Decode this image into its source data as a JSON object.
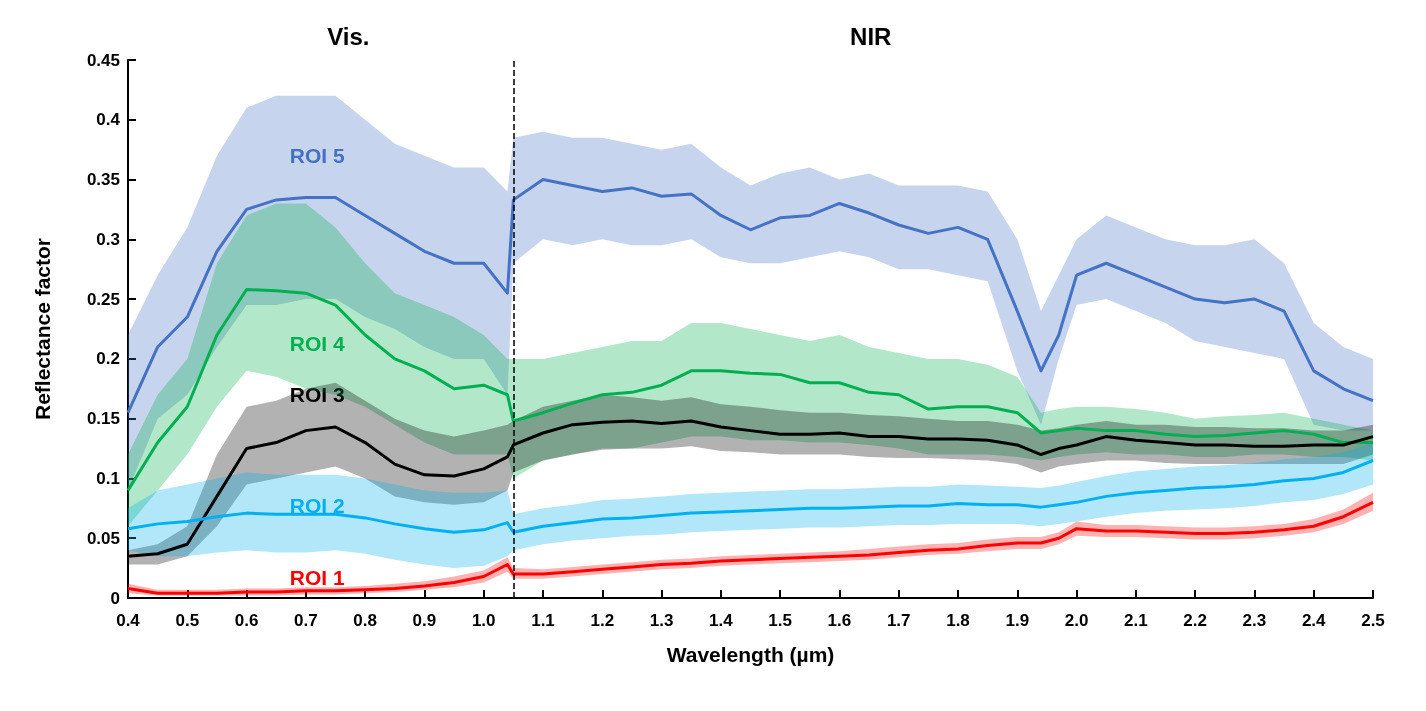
{
  "chart_data": {
    "type": "line",
    "xlabel": "Wavelength (µm)",
    "ylabel": "Reflectance factor",
    "annotations": [
      "Vis.",
      "NIR"
    ],
    "x": [
      0.4,
      0.45,
      0.5,
      0.55,
      0.6,
      0.65,
      0.7,
      0.75,
      0.8,
      0.85,
      0.9,
      0.95,
      1.0,
      1.04,
      1.05,
      1.1,
      1.15,
      1.2,
      1.25,
      1.3,
      1.35,
      1.4,
      1.45,
      1.5,
      1.55,
      1.6,
      1.65,
      1.7,
      1.75,
      1.8,
      1.85,
      1.9,
      1.94,
      1.97,
      2.0,
      2.05,
      2.1,
      2.15,
      2.2,
      2.25,
      2.3,
      2.35,
      2.4,
      2.45,
      2.5
    ],
    "series": [
      {
        "name": "ROI 5",
        "color": "#4472c4",
        "values": [
          0.155,
          0.21,
          0.235,
          0.29,
          0.325,
          0.333,
          0.335,
          0.335,
          0.32,
          0.305,
          0.29,
          0.28,
          0.28,
          0.255,
          0.333,
          0.35,
          0.345,
          0.34,
          0.343,
          0.336,
          0.338,
          0.32,
          0.308,
          0.318,
          0.32,
          0.33,
          0.322,
          0.312,
          0.305,
          0.31,
          0.3,
          0.24,
          0.19,
          0.22,
          0.27,
          0.28,
          0.27,
          0.26,
          0.25,
          0.247,
          0.25,
          0.24,
          0.19,
          0.175,
          0.165
        ],
        "upper": [
          0.22,
          0.27,
          0.31,
          0.37,
          0.41,
          0.42,
          0.42,
          0.42,
          0.4,
          0.38,
          0.37,
          0.36,
          0.36,
          0.34,
          0.385,
          0.39,
          0.385,
          0.385,
          0.38,
          0.375,
          0.38,
          0.36,
          0.345,
          0.355,
          0.36,
          0.35,
          0.355,
          0.345,
          0.345,
          0.345,
          0.34,
          0.3,
          0.24,
          0.27,
          0.3,
          0.32,
          0.31,
          0.3,
          0.295,
          0.295,
          0.3,
          0.28,
          0.23,
          0.21,
          0.2
        ],
        "lower": [
          0.09,
          0.15,
          0.17,
          0.21,
          0.245,
          0.245,
          0.25,
          0.25,
          0.235,
          0.225,
          0.21,
          0.2,
          0.2,
          0.17,
          0.28,
          0.3,
          0.295,
          0.3,
          0.295,
          0.295,
          0.3,
          0.285,
          0.28,
          0.28,
          0.285,
          0.29,
          0.285,
          0.275,
          0.275,
          0.27,
          0.265,
          0.19,
          0.145,
          0.2,
          0.245,
          0.25,
          0.24,
          0.23,
          0.215,
          0.21,
          0.205,
          0.2,
          0.145,
          0.14,
          0.14
        ]
      },
      {
        "name": "ROI 4",
        "color": "#00b050",
        "values": [
          0.09,
          0.13,
          0.16,
          0.22,
          0.258,
          0.257,
          0.255,
          0.245,
          0.22,
          0.2,
          0.19,
          0.175,
          0.178,
          0.17,
          0.148,
          0.155,
          0.163,
          0.17,
          0.172,
          0.178,
          0.19,
          0.19,
          0.188,
          0.187,
          0.18,
          0.18,
          0.172,
          0.17,
          0.158,
          0.16,
          0.16,
          0.155,
          0.138,
          0.14,
          0.142,
          0.14,
          0.14,
          0.137,
          0.135,
          0.136,
          0.138,
          0.14,
          0.137,
          0.13,
          0.13
        ],
        "upper": [
          0.12,
          0.17,
          0.2,
          0.28,
          0.32,
          0.33,
          0.33,
          0.31,
          0.28,
          0.255,
          0.245,
          0.235,
          0.22,
          0.2,
          0.2,
          0.2,
          0.205,
          0.21,
          0.215,
          0.215,
          0.23,
          0.23,
          0.225,
          0.22,
          0.215,
          0.22,
          0.21,
          0.205,
          0.2,
          0.2,
          0.195,
          0.185,
          0.155,
          0.158,
          0.16,
          0.16,
          0.158,
          0.155,
          0.15,
          0.152,
          0.153,
          0.155,
          0.15,
          0.145,
          0.14
        ],
        "lower": [
          0.06,
          0.09,
          0.12,
          0.16,
          0.19,
          0.185,
          0.175,
          0.17,
          0.16,
          0.145,
          0.13,
          0.12,
          0.12,
          0.12,
          0.1,
          0.115,
          0.12,
          0.125,
          0.125,
          0.13,
          0.135,
          0.135,
          0.132,
          0.132,
          0.13,
          0.13,
          0.128,
          0.125,
          0.12,
          0.12,
          0.12,
          0.118,
          0.115,
          0.118,
          0.12,
          0.122,
          0.12,
          0.12,
          0.118,
          0.118,
          0.12,
          0.12,
          0.118,
          0.118,
          0.115
        ]
      },
      {
        "name": "ROI 3",
        "color": "#000000",
        "values": [
          0.035,
          0.037,
          0.045,
          0.085,
          0.125,
          0.13,
          0.14,
          0.143,
          0.13,
          0.112,
          0.103,
          0.102,
          0.108,
          0.118,
          0.128,
          0.138,
          0.145,
          0.147,
          0.148,
          0.146,
          0.148,
          0.143,
          0.14,
          0.137,
          0.137,
          0.138,
          0.135,
          0.135,
          0.133,
          0.133,
          0.132,
          0.128,
          0.12,
          0.125,
          0.128,
          0.135,
          0.132,
          0.13,
          0.128,
          0.128,
          0.127,
          0.127,
          0.128,
          0.128,
          0.135
        ],
        "upper": [
          0.04,
          0.045,
          0.06,
          0.12,
          0.16,
          0.165,
          0.175,
          0.18,
          0.165,
          0.15,
          0.14,
          0.135,
          0.14,
          0.145,
          0.148,
          0.16,
          0.165,
          0.17,
          0.168,
          0.165,
          0.168,
          0.162,
          0.16,
          0.157,
          0.155,
          0.155,
          0.153,
          0.152,
          0.15,
          0.148,
          0.148,
          0.145,
          0.14,
          0.142,
          0.145,
          0.148,
          0.145,
          0.145,
          0.143,
          0.143,
          0.142,
          0.142,
          0.14,
          0.14,
          0.145
        ],
        "lower": [
          0.028,
          0.028,
          0.035,
          0.06,
          0.095,
          0.1,
          0.105,
          0.11,
          0.1,
          0.085,
          0.08,
          0.078,
          0.08,
          0.09,
          0.105,
          0.115,
          0.12,
          0.124,
          0.125,
          0.125,
          0.127,
          0.123,
          0.122,
          0.12,
          0.12,
          0.12,
          0.118,
          0.117,
          0.117,
          0.116,
          0.115,
          0.112,
          0.105,
          0.11,
          0.112,
          0.115,
          0.115,
          0.113,
          0.112,
          0.112,
          0.112,
          0.112,
          0.112,
          0.112,
          0.12
        ]
      },
      {
        "name": "ROI 2",
        "color": "#00b0f0",
        "values": [
          0.058,
          0.062,
          0.064,
          0.068,
          0.071,
          0.07,
          0.07,
          0.07,
          0.067,
          0.062,
          0.058,
          0.055,
          0.057,
          0.063,
          0.055,
          0.06,
          0.063,
          0.066,
          0.067,
          0.069,
          0.071,
          0.072,
          0.073,
          0.074,
          0.075,
          0.075,
          0.076,
          0.077,
          0.077,
          0.079,
          0.078,
          0.078,
          0.076,
          0.078,
          0.08,
          0.085,
          0.088,
          0.09,
          0.092,
          0.093,
          0.095,
          0.098,
          0.1,
          0.105,
          0.115
        ],
        "upper": [
          0.075,
          0.09,
          0.095,
          0.1,
          0.105,
          0.103,
          0.103,
          0.103,
          0.1,
          0.095,
          0.09,
          0.088,
          0.088,
          0.09,
          0.07,
          0.075,
          0.078,
          0.082,
          0.083,
          0.085,
          0.087,
          0.088,
          0.089,
          0.09,
          0.091,
          0.091,
          0.092,
          0.093,
          0.093,
          0.095,
          0.094,
          0.093,
          0.092,
          0.094,
          0.097,
          0.102,
          0.106,
          0.108,
          0.11,
          0.111,
          0.113,
          0.116,
          0.118,
          0.122,
          0.13
        ],
        "lower": [
          0.04,
          0.035,
          0.035,
          0.038,
          0.04,
          0.038,
          0.038,
          0.04,
          0.037,
          0.032,
          0.028,
          0.025,
          0.027,
          0.035,
          0.04,
          0.045,
          0.048,
          0.05,
          0.052,
          0.053,
          0.055,
          0.056,
          0.057,
          0.058,
          0.059,
          0.059,
          0.06,
          0.061,
          0.061,
          0.062,
          0.062,
          0.062,
          0.06,
          0.062,
          0.064,
          0.068,
          0.071,
          0.073,
          0.074,
          0.075,
          0.077,
          0.08,
          0.082,
          0.087,
          0.095
        ]
      },
      {
        "name": "ROI 1",
        "color": "#ff0000",
        "values": [
          0.008,
          0.004,
          0.004,
          0.004,
          0.005,
          0.005,
          0.006,
          0.006,
          0.007,
          0.008,
          0.01,
          0.013,
          0.018,
          0.028,
          0.02,
          0.02,
          0.022,
          0.024,
          0.026,
          0.028,
          0.029,
          0.031,
          0.032,
          0.033,
          0.034,
          0.035,
          0.036,
          0.038,
          0.04,
          0.041,
          0.044,
          0.046,
          0.046,
          0.05,
          0.058,
          0.056,
          0.056,
          0.055,
          0.054,
          0.054,
          0.055,
          0.057,
          0.06,
          0.068,
          0.08
        ],
        "upper": [
          0.012,
          0.007,
          0.007,
          0.007,
          0.008,
          0.008,
          0.009,
          0.009,
          0.01,
          0.012,
          0.014,
          0.018,
          0.023,
          0.034,
          0.025,
          0.024,
          0.026,
          0.028,
          0.03,
          0.032,
          0.033,
          0.035,
          0.036,
          0.037,
          0.038,
          0.039,
          0.041,
          0.043,
          0.045,
          0.046,
          0.049,
          0.051,
          0.051,
          0.055,
          0.064,
          0.061,
          0.061,
          0.06,
          0.059,
          0.059,
          0.06,
          0.062,
          0.066,
          0.074,
          0.088
        ],
        "lower": [
          0.004,
          0.002,
          0.002,
          0.002,
          0.002,
          0.002,
          0.003,
          0.003,
          0.004,
          0.005,
          0.007,
          0.009,
          0.013,
          0.022,
          0.016,
          0.016,
          0.018,
          0.02,
          0.022,
          0.024,
          0.025,
          0.027,
          0.028,
          0.029,
          0.03,
          0.031,
          0.032,
          0.034,
          0.036,
          0.037,
          0.039,
          0.041,
          0.041,
          0.045,
          0.052,
          0.051,
          0.051,
          0.05,
          0.049,
          0.049,
          0.05,
          0.052,
          0.055,
          0.062,
          0.073
        ]
      }
    ],
    "xlim": [
      0.4,
      2.5
    ],
    "xticks": [
      0.4,
      0.5,
      0.6,
      0.7,
      0.8,
      0.9,
      {
        "value": 1.0,
        "label": "1.0"
      },
      1.1,
      1.2,
      1.3,
      1.4,
      1.5,
      1.6,
      1.7,
      1.8,
      1.9,
      {
        "value": 2.0,
        "label": "2.0"
      },
      2.1,
      2.2,
      2.3,
      2.4,
      2.5
    ],
    "ylim": [
      0,
      0.45
    ],
    "yticks": [
      0,
      0.05,
      0.1,
      0.15,
      0.2,
      0.25,
      0.3,
      0.35,
      0.4,
      0.45
    ],
    "ref_lines": [
      {
        "axis": "x",
        "value": 1.05,
        "color": "#000000",
        "line_style": "dashed"
      }
    ],
    "grid": false,
    "legend": false,
    "marker": "none",
    "line_style": "solid"
  }
}
